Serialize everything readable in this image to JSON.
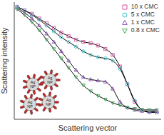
{
  "chart_data": {
    "type": "line",
    "x_label": "Scattering vector",
    "y_label": "Scattering intensity",
    "xlim": [
      0,
      100
    ],
    "ylim": [
      0,
      100
    ],
    "tick_labels": false,
    "legend": "upper right",
    "x": [
      2,
      7,
      12,
      17,
      22,
      27,
      32,
      37,
      42,
      47,
      52,
      57,
      62,
      67,
      72,
      77,
      82,
      87,
      92,
      97
    ],
    "series": [
      {
        "name": "10 x CMC",
        "color": "#d94fa0",
        "marker": "square",
        "values": [
          96,
          93,
          90,
          86,
          82,
          78,
          74,
          71,
          68,
          66,
          65,
          63,
          60,
          55,
          45,
          30,
          15,
          8,
          6,
          6
        ]
      },
      {
        "name": "5 x CMC",
        "color": "#33c7c9",
        "marker": "circle",
        "values": [
          96,
          93,
          89,
          85,
          80,
          75,
          70,
          66,
          62,
          58,
          55,
          53,
          52,
          50,
          43,
          30,
          16,
          8,
          6,
          6
        ]
      },
      {
        "name": "1 x CMC",
        "color": "#8a4fb8",
        "marker": "triangle-up",
        "values": [
          95,
          91,
          86,
          80,
          73,
          66,
          58,
          50,
          42,
          36,
          34,
          33,
          32,
          26,
          15,
          10,
          8,
          7,
          7,
          7
        ]
      },
      {
        "name": "0.8 x CMC",
        "color": "#3fae5a",
        "marker": "triangle-down",
        "values": [
          94,
          89,
          83,
          76,
          68,
          60,
          52,
          44,
          36,
          29,
          24,
          20,
          17,
          14,
          12,
          10,
          9,
          8,
          8,
          8
        ]
      }
    ],
    "annotations": [
      "Ag NP",
      "Ag NP",
      "Ag NP",
      "Ag NP"
    ]
  }
}
